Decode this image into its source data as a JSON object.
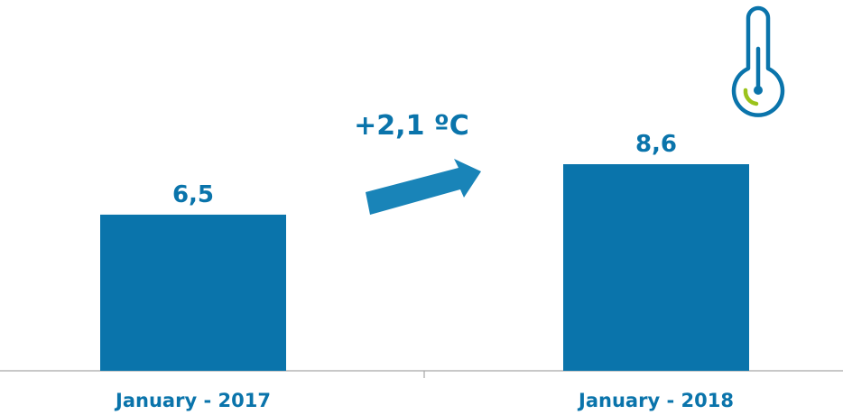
{
  "chart_data": {
    "type": "bar",
    "categories": [
      "January - 2017",
      "January - 2018"
    ],
    "values": [
      6.5,
      8.6
    ],
    "value_labels": [
      "6,5",
      "8,6"
    ],
    "annotation": "+2,1 ºC",
    "title": "",
    "xlabel": "",
    "ylabel": "",
    "ylim": [
      0,
      8.6
    ],
    "grid": false,
    "legend": "none",
    "colors": {
      "bar": "#0a74ab",
      "text": "#0a74ab",
      "axis": "#a6a6a6",
      "arrow": "#1984b8",
      "thermometer": "#0a74ab",
      "thermometer_accent": "#9bc31c"
    },
    "icons": [
      "arrow-up-right-icon",
      "thermometer-icon"
    ]
  }
}
